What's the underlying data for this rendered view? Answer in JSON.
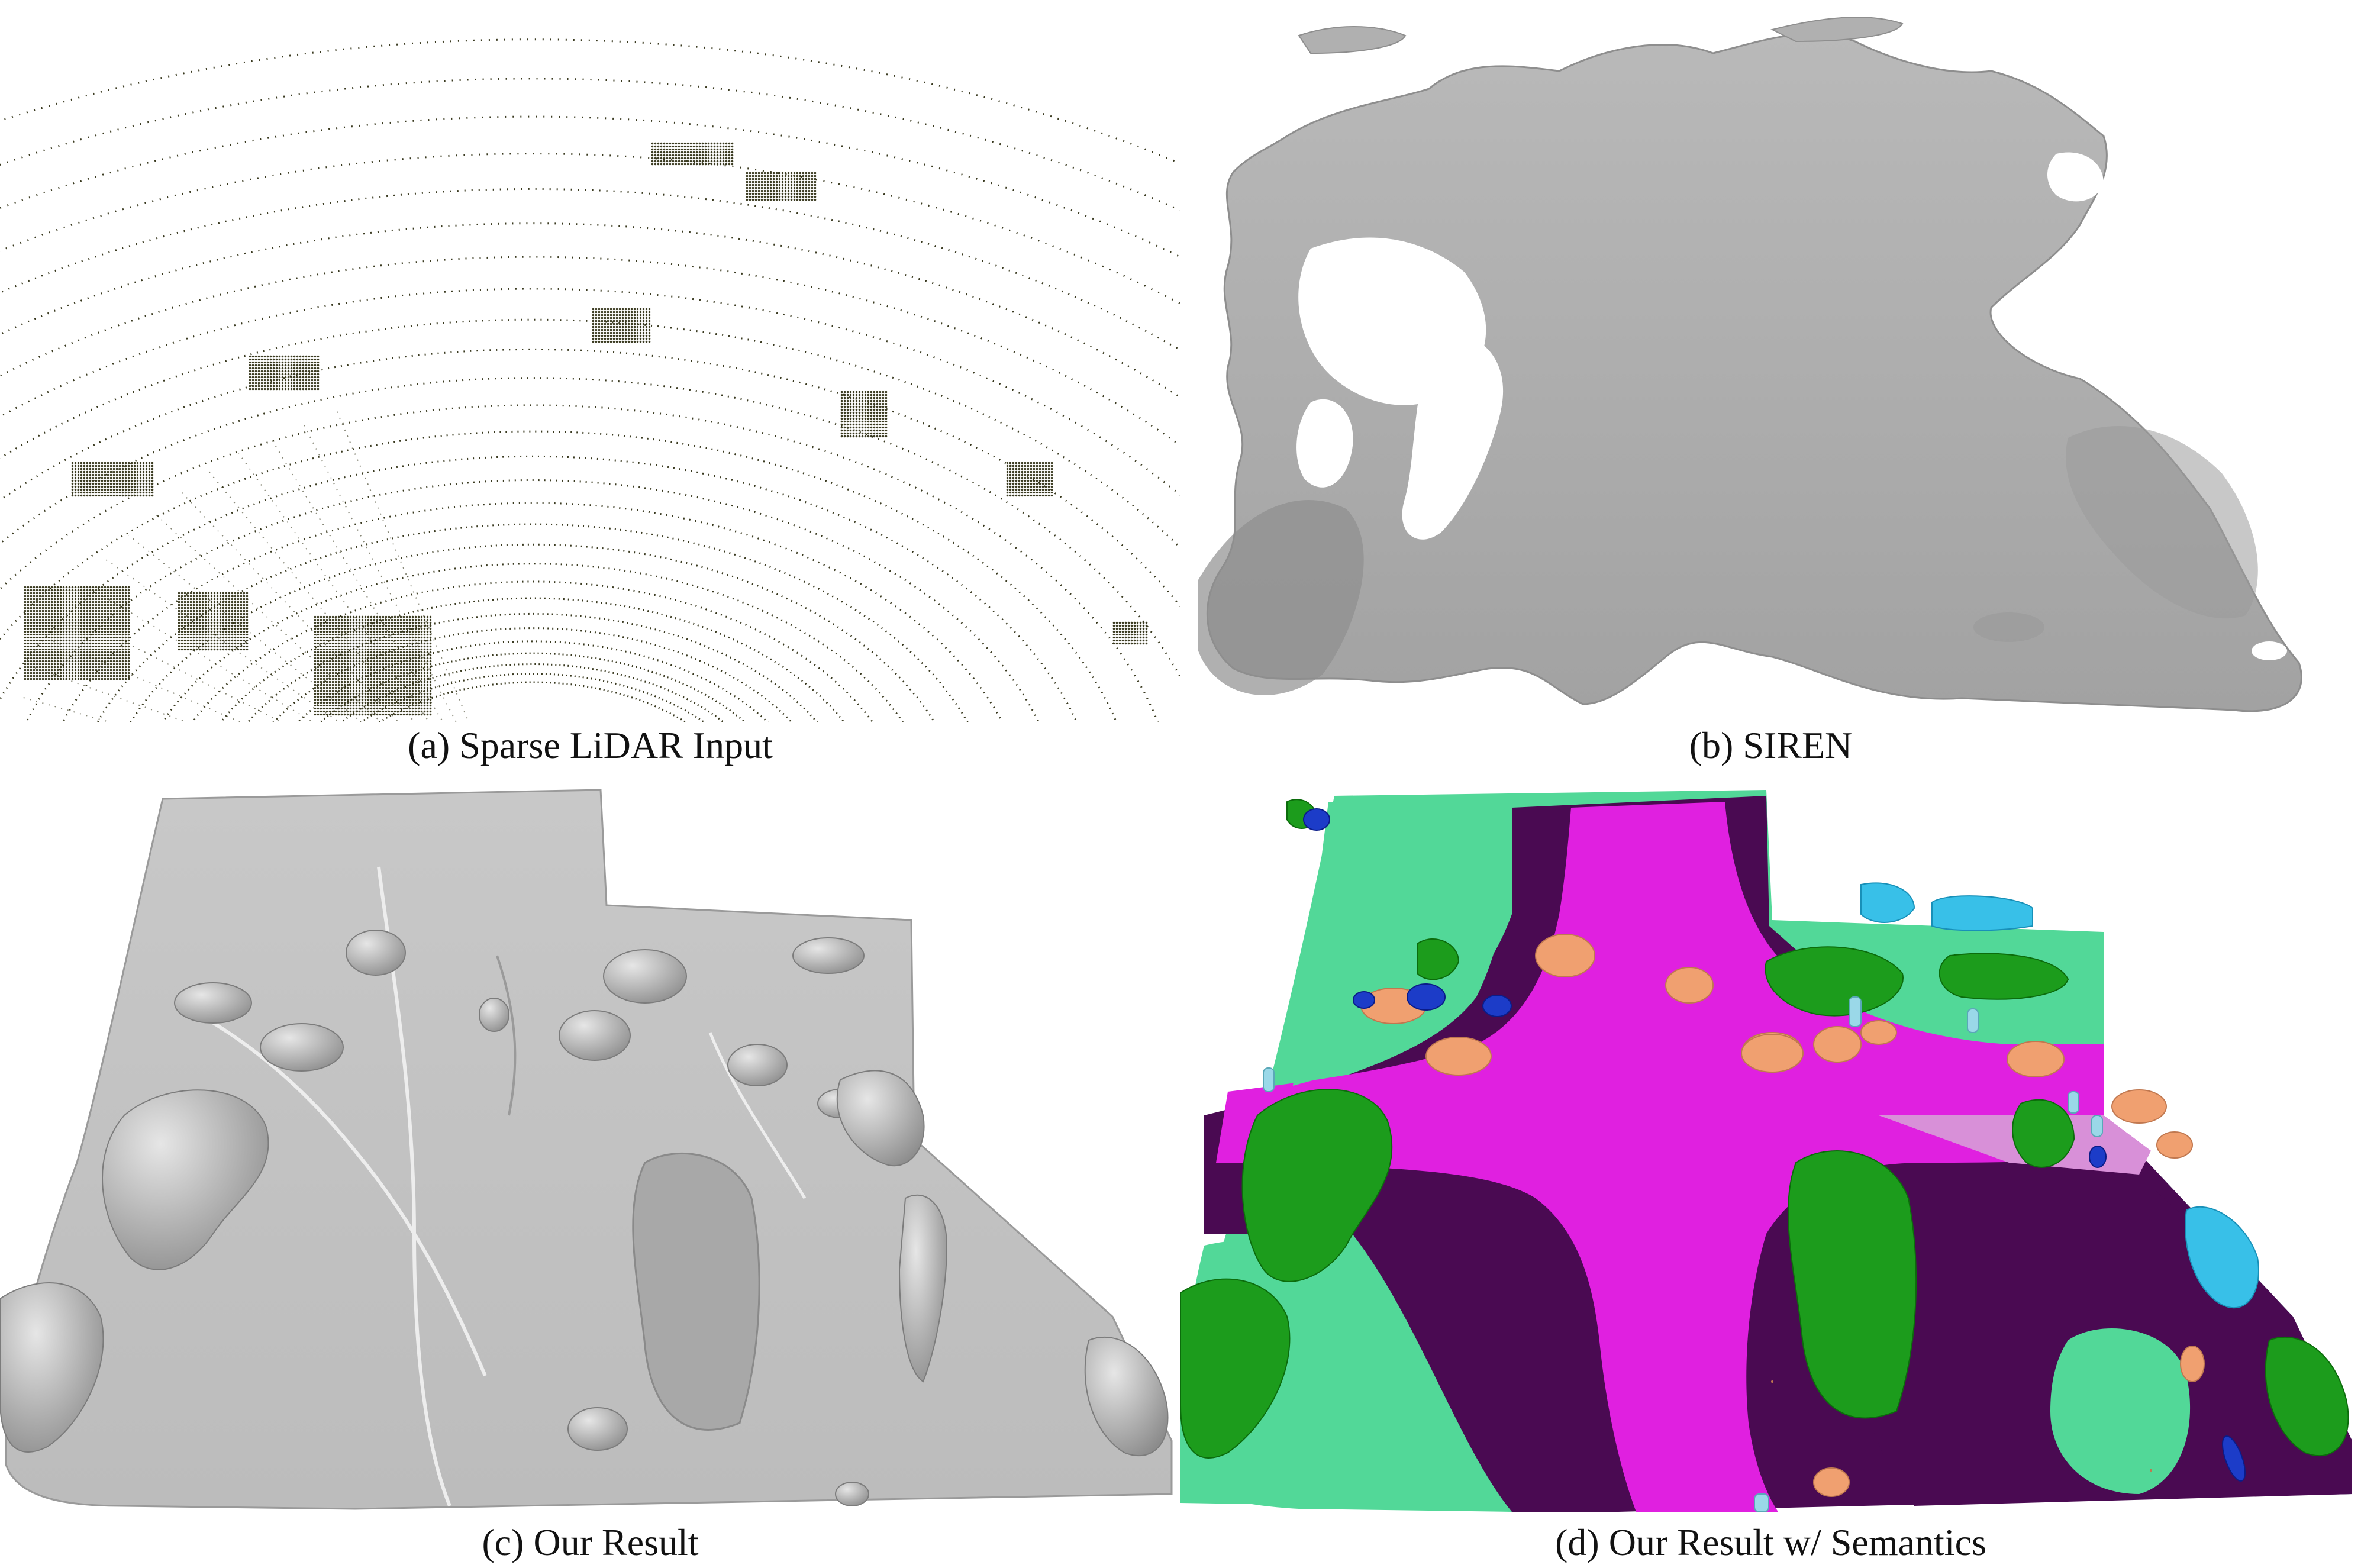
{
  "figure": {
    "panels": [
      {
        "id": "a",
        "caption": "(a) Sparse LiDAR Input"
      },
      {
        "id": "b",
        "caption": "(b) SIREN"
      },
      {
        "id": "c",
        "caption": "(c) Our Result"
      },
      {
        "id": "d",
        "caption": "(d) Our Result w/ Semantics"
      }
    ],
    "colors": {
      "lidar_points": "#3a3a20",
      "mesh_gray": "#c4c4c4",
      "mesh_gray_dark": "#8e8e8e",
      "road": "#e020e0",
      "sidewalk": "#4a0a52",
      "terrain": "#52d898",
      "vegetation": "#1c9c1c",
      "car": "#f0a070",
      "pole": "#9ad8e8",
      "building": "#38c0e8",
      "other_object": "#1c3cc8"
    }
  }
}
